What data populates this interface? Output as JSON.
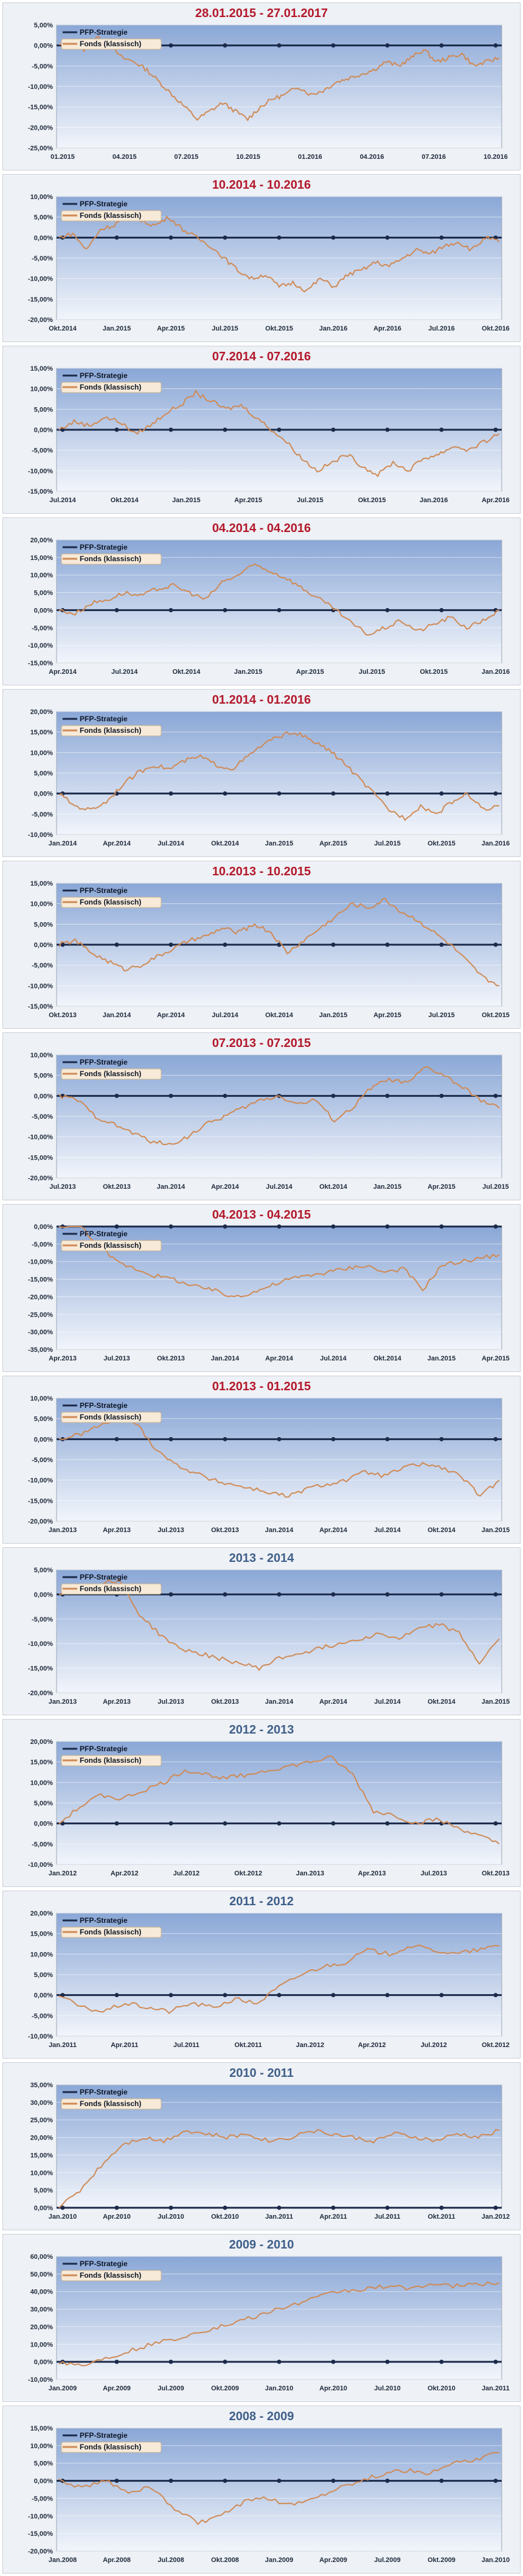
{
  "colors": {
    "fund": "#d08a55",
    "strategy": "#1b2a4a",
    "red_title": "#b3182a",
    "blue_title": "#3f5f8a"
  },
  "chart_data": [
    {
      "type": "line",
      "title": "28.01.2015 - 27.01.2017",
      "title_color": "red",
      "legend": [
        "PFP-Strategie",
        "Fonds (klassisch)"
      ],
      "yticks": [
        "5,00%",
        "0,00%",
        "-5,00%",
        "-10,00%",
        "-15,00%",
        "-20,00%",
        "-25,00%"
      ],
      "ylim": [
        -25,
        5
      ],
      "xticks": [
        "01.2015",
        "04.2015",
        "07.2015",
        "10.2015",
        "01.2016",
        "04.2016",
        "07.2016",
        "10.2016"
      ],
      "series": [
        {
          "name": "Fonds (klassisch)",
          "y": [
            0,
            1,
            -1,
            2,
            0,
            -3,
            -4,
            -6,
            -9,
            -12,
            -15,
            -18,
            -16,
            -14,
            -16,
            -18,
            -15,
            -13,
            -12,
            -10,
            -12,
            -11,
            -9,
            -8,
            -7,
            -6,
            -4,
            -5,
            -3,
            -1,
            -4,
            -3,
            -2,
            -5,
            -4,
            -3
          ]
        }
      ]
    },
    {
      "type": "line",
      "title": "10.2014 - 10.2016",
      "title_color": "red",
      "legend": [
        "PFP-Strategie",
        "Fonds (klassisch)"
      ],
      "yticks": [
        "10,00%",
        "5,00%",
        "0,00%",
        "-5,00%",
        "-10,00%",
        "-15,00%",
        "-20,00%"
      ],
      "ylim": [
        -20,
        10
      ],
      "xticks": [
        "Okt.2014",
        "Jan.2015",
        "Apr.2015",
        "Jul.2015",
        "Okt.2015",
        "Jan.2016",
        "Apr.2016",
        "Jul.2016",
        "Okt.2016"
      ],
      "series": [
        {
          "name": "Fonds (klassisch)",
          "y": [
            0,
            1,
            -3,
            2,
            3,
            6,
            4,
            3,
            5,
            2,
            0,
            -2,
            -5,
            -8,
            -10,
            -9,
            -12,
            -11,
            -13,
            -10,
            -12,
            -9,
            -8,
            -6,
            -7,
            -5,
            -3,
            -4,
            -2,
            -1,
            -3,
            0,
            -1
          ]
        }
      ]
    },
    {
      "type": "line",
      "title": "07.2014 - 07.2016",
      "title_color": "red",
      "legend": [
        "PFP-Strategie",
        "Fonds (klassisch)"
      ],
      "yticks": [
        "15,00%",
        "10,00%",
        "5,00%",
        "0,00%",
        "-5,00%",
        "-10,00%",
        "-15,00%"
      ],
      "ylim": [
        -15,
        15
      ],
      "xticks": [
        "Jul.2014",
        "Okt.2014",
        "Jan.2015",
        "Apr.2015",
        "Jul.2015",
        "Okt.2015",
        "Jan.2016",
        "Apr.2016"
      ],
      "series": [
        {
          "name": "Fonds (klassisch)",
          "y": [
            0,
            2,
            1,
            3,
            2,
            -1,
            1,
            4,
            6,
            9,
            7,
            5,
            6,
            3,
            0,
            -3,
            -7,
            -10,
            -8,
            -6,
            -9,
            -11,
            -8,
            -10,
            -7,
            -6,
            -4,
            -5,
            -3,
            -1
          ]
        }
      ]
    },
    {
      "type": "line",
      "title": "04.2014 - 04.2016",
      "title_color": "red",
      "legend": [
        "PFP-Strategie",
        "Fonds (klassisch)"
      ],
      "yticks": [
        "20,00%",
        "15,00%",
        "10,00%",
        "5,00%",
        "0,00%",
        "-5,00%",
        "-10,00%",
        "-15,00%"
      ],
      "ylim": [
        -15,
        20
      ],
      "xticks": [
        "Apr.2014",
        "Jul.2014",
        "Okt.2014",
        "Jan.2015",
        "Apr.2015",
        "Jul.2015",
        "Okt.2015",
        "Jan.2016"
      ],
      "series": [
        {
          "name": "Fonds (klassisch)",
          "y": [
            0,
            -1,
            2,
            3,
            5,
            4,
            6,
            7,
            5,
            3,
            8,
            10,
            13,
            11,
            9,
            6,
            3,
            0,
            -4,
            -7,
            -5,
            -3,
            -6,
            -4,
            -2,
            -5,
            -3,
            0
          ]
        }
      ]
    },
    {
      "type": "line",
      "title": "01.2014 - 01.2016",
      "title_color": "red",
      "legend": [
        "PFP-Strategie",
        "Fonds (klassisch)"
      ],
      "yticks": [
        "20,00%",
        "15,00%",
        "10,00%",
        "5,00%",
        "0,00%",
        "-5,00%",
        "-10,00%"
      ],
      "ylim": [
        -10,
        20
      ],
      "xticks": [
        "Jan.2014",
        "Apr.2014",
        "Jul.2014",
        "Okt.2014",
        "Jan.2015",
        "Apr.2015",
        "Jul.2015",
        "Okt.2015",
        "Jan.2016"
      ],
      "series": [
        {
          "name": "Fonds (klassisch)",
          "y": [
            0,
            -3,
            -4,
            -2,
            2,
            5,
            7,
            6,
            8,
            9,
            7,
            6,
            9,
            12,
            14,
            15,
            13,
            11,
            8,
            4,
            0,
            -4,
            -6,
            -3,
            -5,
            -2,
            0,
            -4,
            -3
          ]
        }
      ]
    },
    {
      "type": "line",
      "title": "10.2013 - 10.2015",
      "title_color": "red",
      "legend": [
        "PFP-Strategie",
        "Fonds (klassisch)"
      ],
      "yticks": [
        "15,00%",
        "10,00%",
        "5,00%",
        "0,00%",
        "-5,00%",
        "-10,00%",
        "-15,00%"
      ],
      "ylim": [
        -15,
        15
      ],
      "xticks": [
        "Okt.2013",
        "Jan.2014",
        "Apr.2014",
        "Jul.2014",
        "Okt.2014",
        "Jan.2015",
        "Apr.2015",
        "Jul.2015",
        "Okt.2015"
      ],
      "series": [
        {
          "name": "Fonds (klassisch)",
          "y": [
            0,
            1,
            -2,
            -4,
            -6,
            -5,
            -3,
            -1,
            1,
            2,
            4,
            3,
            5,
            3,
            -2,
            1,
            4,
            7,
            10,
            9,
            11,
            8,
            6,
            3,
            0,
            -4,
            -8,
            -10
          ]
        }
      ]
    },
    {
      "type": "line",
      "title": "07.2013 - 07.2015",
      "title_color": "red",
      "legend": [
        "PFP-Strategie",
        "Fonds (klassisch)"
      ],
      "yticks": [
        "10,00%",
        "5,00%",
        "0,00%",
        "-5,00%",
        "-10,00%",
        "-15,00%",
        "-20,00%"
      ],
      "ylim": [
        -20,
        10
      ],
      "xticks": [
        "Jul.2013",
        "Okt.2013",
        "Jan.2014",
        "Apr.2014",
        "Jul.2014",
        "Okt.2014",
        "Jan.2015",
        "Apr.2015",
        "Jul.2015"
      ],
      "series": [
        {
          "name": "Fonds (klassisch)",
          "y": [
            0,
            -1,
            -5,
            -7,
            -9,
            -11,
            -12,
            -10,
            -7,
            -5,
            -3,
            -1,
            0,
            -2,
            -1,
            -6,
            -3,
            2,
            4,
            3,
            7,
            5,
            2,
            -1,
            -3
          ]
        }
      ]
    },
    {
      "type": "line",
      "title": "04.2013 - 04.2015",
      "title_color": "red",
      "legend": [
        "PFP-Strategie",
        "Fonds (klassisch)"
      ],
      "yticks": [
        "0,00%",
        "-5,00%",
        "-10,00%",
        "-15,00%",
        "-20,00%",
        "-25,00%",
        "-30,00%",
        "-35,00%"
      ],
      "ylim": [
        -35,
        0
      ],
      "xticks": [
        "Apr.2013",
        "Jul.2013",
        "Okt.2013",
        "Jan.2014",
        "Apr.2014",
        "Jul.2014",
        "Okt.2014",
        "Jan.2015",
        "Apr.2015"
      ],
      "series": [
        {
          "name": "Fonds (klassisch)",
          "y": [
            0,
            1,
            -5,
            -10,
            -12,
            -14,
            -15,
            -17,
            -18,
            -20,
            -19,
            -17,
            -15,
            -14,
            -13,
            -12,
            -11,
            -13,
            -12,
            -18,
            -11,
            -10,
            -9,
            -8
          ]
        }
      ]
    },
    {
      "type": "line",
      "title": "01.2013 - 01.2015",
      "title_color": "red",
      "legend": [
        "PFP-Strategie",
        "Fonds (klassisch)"
      ],
      "yticks": [
        "10,00%",
        "5,00%",
        "0,00%",
        "-5,00%",
        "-10,00%",
        "-15,00%",
        "-20,00%"
      ],
      "ylim": [
        -20,
        10
      ],
      "xticks": [
        "Jan.2013",
        "Apr.2013",
        "Jul.2013",
        "Okt.2013",
        "Jan.2014",
        "Apr.2014",
        "Jul.2014",
        "Okt.2014",
        "Jan.2015"
      ],
      "series": [
        {
          "name": "Fonds (klassisch)",
          "y": [
            0,
            1,
            3,
            5,
            4,
            -2,
            -6,
            -8,
            -10,
            -11,
            -12,
            -13,
            -14,
            -12,
            -11,
            -10,
            -8,
            -9,
            -7,
            -6,
            -7,
            -9,
            -14,
            -10
          ]
        }
      ]
    },
    {
      "type": "line",
      "title": "2013 - 2014",
      "title_color": "blue",
      "legend": [
        "PFP-Strategie",
        "Fonds (klassisch)"
      ],
      "yticks": [
        "5,00%",
        "0,00%",
        "-5,00%",
        "-10,00%",
        "-15,00%",
        "-20,00%"
      ],
      "ylim": [
        -20,
        5
      ],
      "xticks": [
        "Jan.2013",
        "Apr.2013",
        "Jul.2013",
        "Okt.2013",
        "Jan.2014",
        "Apr.2014",
        "Jul.2014",
        "Okt.2014",
        "Jan.2015"
      ],
      "series": [
        {
          "name": "Fonds (klassisch)",
          "y": [
            0,
            1,
            2,
            3,
            -4,
            -8,
            -11,
            -12,
            -13,
            -14,
            -15,
            -13,
            -12,
            -11,
            -10,
            -9,
            -8,
            -9,
            -7,
            -6,
            -8,
            -14,
            -9
          ]
        }
      ]
    },
    {
      "type": "line",
      "title": "2012 - 2013",
      "title_color": "blue",
      "legend": [
        "PFP-Strategie",
        "Fonds (klassisch)"
      ],
      "yticks": [
        "20,00%",
        "15,00%",
        "10,00%",
        "5,00%",
        "0,00%",
        "-5,00%",
        "-10,00%"
      ],
      "ylim": [
        -10,
        20
      ],
      "xticks": [
        "Jan.2012",
        "Apr.2012",
        "Jul.2012",
        "Okt.2012",
        "Jan.2013",
        "Apr.2013",
        "Jul.2013",
        "Okt.2013"
      ],
      "series": [
        {
          "name": "Fonds (klassisch)",
          "y": [
            0,
            4,
            7,
            6,
            8,
            10,
            13,
            12,
            11,
            12,
            13,
            14,
            15,
            16,
            12,
            3,
            2,
            0,
            1,
            -1,
            -3,
            -5
          ]
        }
      ]
    },
    {
      "type": "line",
      "title": "2011 - 2012",
      "title_color": "blue",
      "legend": [
        "PFP-Strategie",
        "Fonds (klassisch)"
      ],
      "yticks": [
        "20,00%",
        "15,00%",
        "10,00%",
        "5,00%",
        "0,00%",
        "-5,00%",
        "-10,00%"
      ],
      "ylim": [
        -10,
        20
      ],
      "xticks": [
        "Jan.2011",
        "Apr.2011",
        "Jul.2011",
        "Okt.2011",
        "Jan.2012",
        "Apr.2012",
        "Jul.2012",
        "Okt.2012"
      ],
      "series": [
        {
          "name": "Fonds (klassisch)",
          "y": [
            0,
            -3,
            -4,
            -2,
            -3,
            -4,
            -2,
            -3,
            -1,
            -2,
            2,
            5,
            7,
            8,
            11,
            10,
            12,
            11,
            10,
            11,
            12
          ]
        }
      ]
    },
    {
      "type": "line",
      "title": "2010 - 2011",
      "title_color": "blue",
      "legend": [
        "PFP-Strategie",
        "Fonds (klassisch)"
      ],
      "yticks": [
        "35,00%",
        "30,00%",
        "25,00%",
        "20,00%",
        "15,00%",
        "10,00%",
        "5,00%",
        "0,00%"
      ],
      "ylim": [
        0,
        35
      ],
      "xticks": [
        "Jan.2010",
        "Apr.2010",
        "Jul.2010",
        "Okt.2010",
        "Jan.2011",
        "Apr.2011",
        "Jul.2011",
        "Okt.2011",
        "Jan.2012"
      ],
      "series": [
        {
          "name": "Fonds (klassisch)",
          "y": [
            0,
            5,
            12,
            18,
            20,
            19,
            22,
            21,
            20,
            21,
            19,
            20,
            22,
            21,
            20,
            19,
            21,
            20,
            19,
            21,
            20,
            22
          ]
        }
      ]
    },
    {
      "type": "line",
      "title": "2009 - 2010",
      "title_color": "blue",
      "legend": [
        "PFP-Strategie",
        "Fonds (klassisch)"
      ],
      "yticks": [
        "60,00%",
        "50,00%",
        "40,00%",
        "30,00%",
        "20,00%",
        "10,00%",
        "0,00%",
        "-10,00%"
      ],
      "ylim": [
        -10,
        60
      ],
      "xticks": [
        "Jan.2009",
        "Apr.2009",
        "Jul.2009",
        "Okt.2009",
        "Jan.2010",
        "Apr.2010",
        "Jul.2010",
        "Okt.2010",
        "Jan.2011"
      ],
      "series": [
        {
          "name": "Fonds (klassisch)",
          "y": [
            0,
            -2,
            2,
            6,
            10,
            13,
            17,
            20,
            24,
            28,
            32,
            36,
            40,
            41,
            43,
            42,
            44,
            43,
            44,
            45
          ]
        }
      ]
    },
    {
      "type": "line",
      "title": "2008 - 2009",
      "title_color": "blue",
      "legend": [
        "PFP-Strategie",
        "Fonds (klassisch)"
      ],
      "yticks": [
        "15,00%",
        "10,00%",
        "5,00%",
        "0,00%",
        "-5,00%",
        "-10,00%",
        "-15,00%",
        "-20,00%"
      ],
      "ylim": [
        -20,
        15
      ],
      "xticks": [
        "Jan.2008",
        "Apr.2008",
        "Jul.2008",
        "Okt.2008",
        "Jan.2009",
        "Apr.2009",
        "Jul.2009",
        "Okt.2009",
        "Jan.2010"
      ],
      "series": [
        {
          "name": "Fonds (klassisch)",
          "y": [
            0,
            -2,
            0,
            -3,
            -2,
            -8,
            -12,
            -10,
            -6,
            -5,
            -7,
            -5,
            -2,
            0,
            2,
            3,
            2,
            5,
            6,
            8
          ]
        }
      ]
    }
  ]
}
